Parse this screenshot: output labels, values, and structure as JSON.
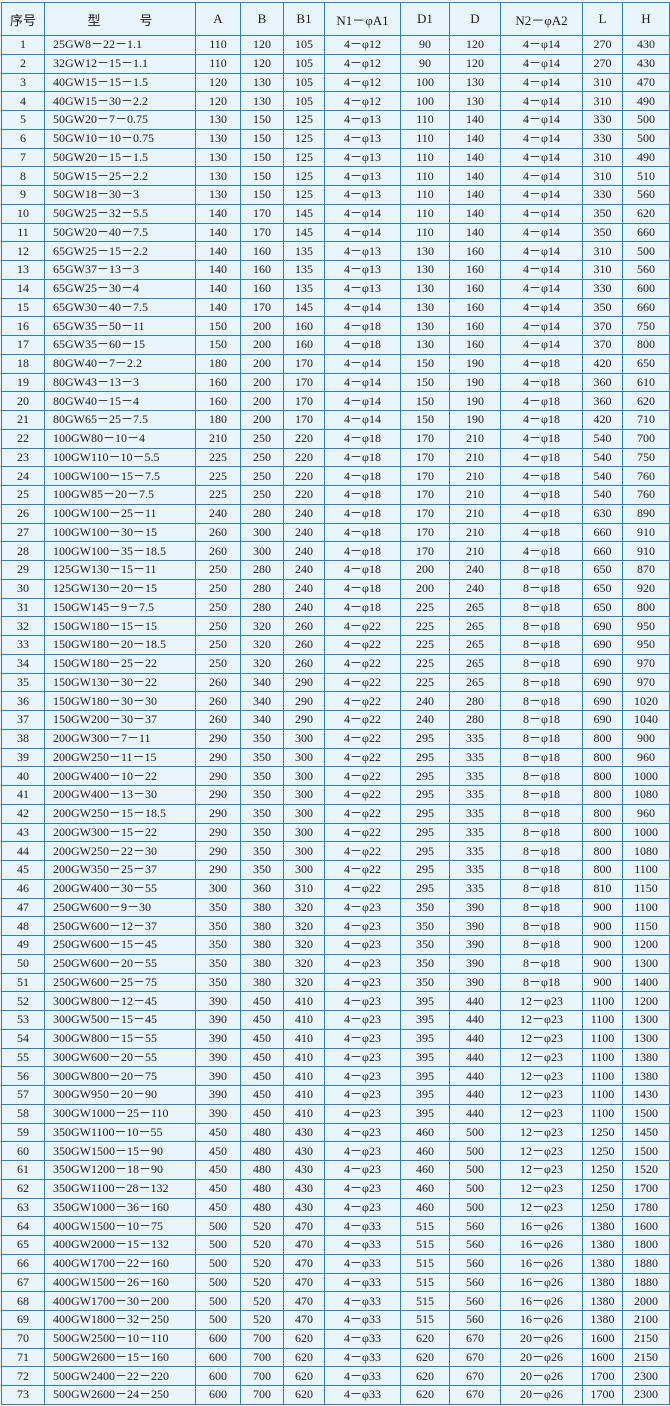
{
  "table": {
    "header": [
      "序号",
      "型　　　号",
      "A",
      "B",
      "B1",
      "N1－φA1",
      "D1",
      "D",
      "N2－φA2",
      "L",
      "H"
    ],
    "rows": [
      [
        1,
        "25GW8－22－1.1",
        110,
        120,
        105,
        "4－φ12",
        90,
        120,
        "4－φ14",
        270,
        430
      ],
      [
        2,
        "32GW12－15－1.1",
        110,
        120,
        105,
        "4－φ12",
        90,
        120,
        "4－φ14",
        270,
        430
      ],
      [
        3,
        "40GW15－15－1.5",
        120,
        130,
        105,
        "4－φ12",
        100,
        130,
        "4－φ14",
        310,
        470
      ],
      [
        4,
        "40GW15－30－2.2",
        120,
        130,
        105,
        "4－φ12",
        100,
        130,
        "4－φ14",
        310,
        490
      ],
      [
        5,
        "50GW20－7－0.75",
        130,
        150,
        125,
        "4－φ13",
        110,
        140,
        "4－φ14",
        330,
        500
      ],
      [
        6,
        "50GW10－10－0.75",
        130,
        150,
        125,
        "4－φ13",
        110,
        140,
        "4－φ14",
        330,
        500
      ],
      [
        7,
        "50GW20－15－1.5",
        130,
        150,
        125,
        "4－φ13",
        110,
        140,
        "4－φ14",
        310,
        490
      ],
      [
        8,
        "50GW15－25－2.2",
        130,
        150,
        125,
        "4－φ13",
        110,
        140,
        "4－φ14",
        310,
        510
      ],
      [
        9,
        "50GW18－30－3",
        130,
        150,
        125,
        "4－φ13",
        110,
        140,
        "4－φ14",
        330,
        560
      ],
      [
        10,
        "50GW25－32－5.5",
        140,
        170,
        145,
        "4－φ14",
        110,
        140,
        "4－φ14",
        350,
        620
      ],
      [
        11,
        "50GW20－40－7.5",
        140,
        170,
        145,
        "4－φ14",
        110,
        140,
        "4－φ14",
        350,
        660
      ],
      [
        12,
        "65GW25－15－2.2",
        140,
        160,
        135,
        "4－φ13",
        130,
        160,
        "4－φ14",
        310,
        500
      ],
      [
        13,
        "65GW37－13－3",
        140,
        160,
        135,
        "4－φ13",
        130,
        160,
        "4－φ14",
        310,
        560
      ],
      [
        14,
        "65GW25－30－4",
        140,
        160,
        135,
        "4－φ13",
        130,
        160,
        "4－φ14",
        330,
        600
      ],
      [
        15,
        "65GW30－40－7.5",
        140,
        170,
        145,
        "4－φ14",
        130,
        160,
        "4－φ14",
        350,
        660
      ],
      [
        16,
        "65GW35－50－11",
        150,
        200,
        160,
        "4－φ18",
        130,
        160,
        "4－φ14",
        370,
        750
      ],
      [
        17,
        "65GW35－60－15",
        150,
        200,
        160,
        "4－φ18",
        130,
        160,
        "4－φ14",
        370,
        800
      ],
      [
        18,
        "80GW40－7－2.2",
        180,
        200,
        170,
        "4－φ14",
        150,
        190,
        "4－φ18",
        420,
        650
      ],
      [
        19,
        "80GW43－13－3",
        160,
        200,
        170,
        "4－φ14",
        150,
        190,
        "4－φ18",
        360,
        610
      ],
      [
        20,
        "80GW40－15－4",
        160,
        200,
        170,
        "4－φ14",
        150,
        190,
        "4－φ18",
        360,
        620
      ],
      [
        21,
        "80GW65－25－7.5",
        180,
        200,
        170,
        "4－φ14",
        150,
        190,
        "4－φ18",
        420,
        710
      ],
      [
        22,
        "100GW80－10－4",
        210,
        250,
        220,
        "4－φ18",
        170,
        210,
        "4－φ18",
        540,
        700
      ],
      [
        23,
        "100GW110－10－5.5",
        225,
        250,
        220,
        "4－φ18",
        170,
        210,
        "4－φ18",
        540,
        750
      ],
      [
        24,
        "100GW100－15－7.5",
        225,
        250,
        220,
        "4－φ18",
        170,
        210,
        "4－φ18",
        540,
        760
      ],
      [
        25,
        "100GW85－20－7.5",
        225,
        250,
        220,
        "4－φ18",
        170,
        210,
        "4－φ18",
        540,
        760
      ],
      [
        26,
        "100GW100－25－11",
        240,
        280,
        240,
        "4－φ18",
        170,
        210,
        "4－φ18",
        630,
        890
      ],
      [
        27,
        "100GW100－30－15",
        260,
        300,
        240,
        "4－φ18",
        170,
        210,
        "4－φ18",
        660,
        910
      ],
      [
        28,
        "100GW100－35－18.5",
        260,
        300,
        240,
        "4－φ18",
        170,
        210,
        "4－φ18",
        660,
        910
      ],
      [
        29,
        "125GW130－15－11",
        250,
        280,
        240,
        "4－φ18",
        200,
        240,
        "8－φ18",
        650,
        870
      ],
      [
        30,
        "125GW130－20－15",
        250,
        280,
        240,
        "4－φ18",
        200,
        240,
        "8－φ18",
        650,
        920
      ],
      [
        31,
        "150GW145－9－7.5",
        250,
        280,
        240,
        "4－φ18",
        225,
        265,
        "8－φ18",
        650,
        800
      ],
      [
        32,
        "150GW180－15－15",
        250,
        320,
        260,
        "4－φ22",
        225,
        265,
        "8－φ18",
        690,
        950
      ],
      [
        33,
        "150GW180－20－18.5",
        250,
        320,
        260,
        "4－φ22",
        225,
        265,
        "8－φ18",
        690,
        950
      ],
      [
        34,
        "150GW180－25－22",
        250,
        320,
        260,
        "4－φ22",
        225,
        265,
        "8－φ18",
        690,
        970
      ],
      [
        35,
        "150GW130－30－22",
        260,
        340,
        290,
        "4－φ22",
        225,
        265,
        "8－φ18",
        690,
        970
      ],
      [
        36,
        "150GW180－30－30",
        260,
        340,
        290,
        "4－φ22",
        240,
        280,
        "8－φ18",
        690,
        1020
      ],
      [
        37,
        "150GW200－30－37",
        260,
        340,
        290,
        "4－φ22",
        240,
        280,
        "8－φ18",
        690,
        1040
      ],
      [
        38,
        "200GW300－7－11",
        290,
        350,
        300,
        "4－φ22",
        295,
        335,
        "8－φ18",
        800,
        900
      ],
      [
        39,
        "200GW250－11－15",
        290,
        350,
        300,
        "4－φ22",
        295,
        335,
        "8－φ18",
        800,
        960
      ],
      [
        40,
        "200GW400－10－22",
        290,
        350,
        300,
        "4－φ22",
        295,
        335,
        "8－φ18",
        800,
        1000
      ],
      [
        41,
        "200GW400－13－30",
        290,
        350,
        300,
        "4－φ22",
        295,
        335,
        "8－φ18",
        800,
        1080
      ],
      [
        42,
        "200GW250－15－18.5",
        290,
        350,
        300,
        "4－φ22",
        295,
        335,
        "8－φ18",
        800,
        960
      ],
      [
        43,
        "200GW300－15－22",
        290,
        350,
        300,
        "4－φ22",
        295,
        335,
        "8－φ18",
        800,
        1000
      ],
      [
        44,
        "200GW250－22－30",
        290,
        350,
        300,
        "4－φ22",
        295,
        335,
        "8－φ18",
        800,
        1080
      ],
      [
        45,
        "200GW350－25－37",
        290,
        350,
        300,
        "4－φ22",
        295,
        335,
        "8－φ18",
        800,
        1100
      ],
      [
        46,
        "200GW400－30－55",
        300,
        360,
        310,
        "4－φ22",
        295,
        335,
        "8－φ18",
        810,
        1150
      ],
      [
        47,
        "250GW600－9－30",
        350,
        380,
        320,
        "4－φ23",
        350,
        390,
        "8－φ18",
        900,
        1100
      ],
      [
        48,
        "250GW600－12－37",
        350,
        380,
        320,
        "4－φ23",
        350,
        390,
        "8－φ18",
        900,
        1150
      ],
      [
        49,
        "250GW600－15－45",
        350,
        380,
        320,
        "4－φ23",
        350,
        390,
        "8－φ18",
        900,
        1200
      ],
      [
        50,
        "250GW600－20－55",
        350,
        380,
        320,
        "4－φ23",
        350,
        390,
        "8－φ18",
        900,
        1300
      ],
      [
        51,
        "250GW600－25－75",
        350,
        380,
        320,
        "4－φ23",
        350,
        390,
        "8－φ18",
        900,
        1400
      ],
      [
        52,
        "300GW800－12－45",
        390,
        450,
        410,
        "4－φ23",
        395,
        440,
        "12－φ23",
        1100,
        1200
      ],
      [
        53,
        "300GW500－15－45",
        390,
        450,
        410,
        "4－φ23",
        395,
        440,
        "12－φ23",
        1100,
        1300
      ],
      [
        54,
        "300GW800－15－55",
        390,
        450,
        410,
        "4－φ23",
        395,
        440,
        "12－φ23",
        1100,
        1300
      ],
      [
        55,
        "300GW600－20－55",
        390,
        450,
        410,
        "4－φ23",
        395,
        440,
        "12－φ23",
        1100,
        1380
      ],
      [
        56,
        "300GW800－20－75",
        390,
        450,
        410,
        "4－φ23",
        395,
        440,
        "12－φ23",
        1100,
        1380
      ],
      [
        57,
        "300GW950－20－90",
        390,
        450,
        410,
        "4－φ23",
        395,
        440,
        "12－φ23",
        1100,
        1430
      ],
      [
        58,
        "300GW1000－25－110",
        390,
        450,
        410,
        "4－φ23",
        395,
        440,
        "12－φ23",
        1100,
        1500
      ],
      [
        59,
        "350GW1100－10－55",
        450,
        480,
        430,
        "4－φ23",
        460,
        500,
        "12－φ23",
        1250,
        1450
      ],
      [
        60,
        "350GW1500－15－90",
        450,
        480,
        430,
        "4－φ23",
        460,
        500,
        "12－φ23",
        1250,
        1500
      ],
      [
        61,
        "350GW1200－18－90",
        450,
        480,
        430,
        "4－φ23",
        460,
        500,
        "12－φ23",
        1250,
        1520
      ],
      [
        62,
        "350GW1100－28－132",
        450,
        480,
        430,
        "4－φ23",
        460,
        500,
        "12－φ23",
        1250,
        1700
      ],
      [
        63,
        "350GW1000－36－160",
        450,
        480,
        430,
        "4－φ23",
        460,
        500,
        "12－φ23",
        1250,
        1780
      ],
      [
        64,
        "400GW1500－10－75",
        500,
        520,
        470,
        "4－φ33",
        515,
        560,
        "16－φ26",
        1380,
        1600
      ],
      [
        65,
        "400GW2000－15－132",
        500,
        520,
        470,
        "4－φ33",
        515,
        560,
        "16－φ26",
        1380,
        1800
      ],
      [
        66,
        "400GW1700－22－160",
        500,
        520,
        470,
        "4－φ33",
        515,
        560,
        "16－φ26",
        1380,
        1880
      ],
      [
        67,
        "400GW1500－26－160",
        500,
        520,
        470,
        "4－φ33",
        515,
        560,
        "16－φ26",
        1380,
        1880
      ],
      [
        68,
        "400GW1700－30－200",
        500,
        520,
        470,
        "4－φ33",
        515,
        560,
        "16－φ26",
        1380,
        2000
      ],
      [
        69,
        "400GW1800－32－250",
        500,
        520,
        470,
        "4－φ33",
        515,
        560,
        "16－φ26",
        1380,
        2100
      ],
      [
        70,
        "500GW2500－10－110",
        600,
        700,
        620,
        "4－φ33",
        620,
        670,
        "20－φ26",
        1600,
        2150
      ],
      [
        71,
        "500GW2600－15－160",
        600,
        700,
        620,
        "4－φ33",
        620,
        670,
        "20－φ26",
        1600,
        2150
      ],
      [
        72,
        "500GW2400－22－220",
        600,
        700,
        620,
        "4－φ33",
        620,
        670,
        "20－φ26",
        1700,
        2300
      ],
      [
        73,
        "500GW2600－24－250",
        600,
        700,
        620,
        "4－φ33",
        620,
        670,
        "20－φ26",
        1700,
        2300
      ]
    ]
  }
}
